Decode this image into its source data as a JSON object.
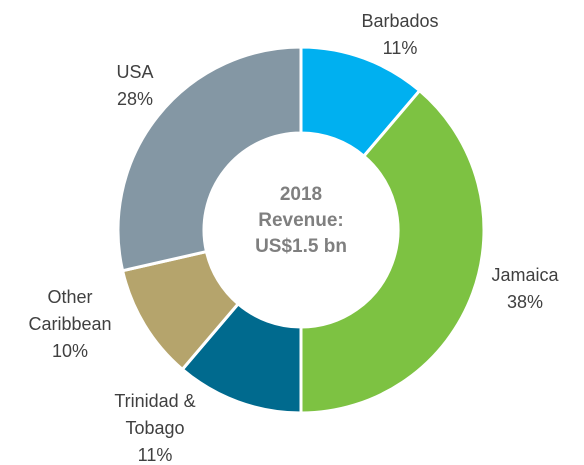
{
  "chart_data": {
    "type": "donut",
    "center_text": [
      "2018",
      "Revenue:",
      "US$1.5 bn"
    ],
    "categories": [
      "Barbados",
      "Jamaica",
      "Trinidad & Tobago",
      "Other Caribbean",
      "USA"
    ],
    "values": [
      11,
      38,
      11,
      10,
      28
    ],
    "value_labels": [
      "11%",
      "38%",
      "11%",
      "10%",
      "28%"
    ],
    "colors": [
      "#00b0f0",
      "#7dc242",
      "#006a8e",
      "#b5a46c",
      "#8497a4"
    ]
  }
}
